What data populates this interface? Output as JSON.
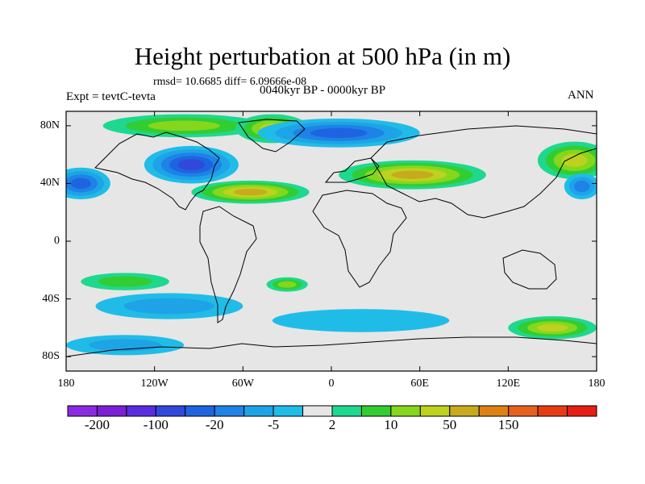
{
  "chart_data": {
    "type": "heatmap",
    "title": "Height perturbation at 500 hPa (in m)",
    "stats_text": "rmsd= 10.6685 diff= 6.09666e-08",
    "period_text": "0040kyr BP - 0000kyr BP",
    "left_text": "Expt = tevtC-tevta",
    "right_text": "ANN",
    "xlim": [
      -180,
      180
    ],
    "ylim": [
      -90,
      90
    ],
    "x_ticks": [
      {
        "value": -180,
        "label": "180"
      },
      {
        "value": -120,
        "label": "120W"
      },
      {
        "value": -60,
        "label": "60W"
      },
      {
        "value": 0,
        "label": "0"
      },
      {
        "value": 60,
        "label": "60E"
      },
      {
        "value": 120,
        "label": "120E"
      },
      {
        "value": 180,
        "label": "180"
      }
    ],
    "y_ticks": [
      {
        "value": 80,
        "label": "80N"
      },
      {
        "value": 40,
        "label": "40N"
      },
      {
        "value": 0,
        "label": "0"
      },
      {
        "value": -40,
        "label": "40S"
      },
      {
        "value": -80,
        "label": "80S"
      }
    ],
    "colorbar": {
      "colors": [
        "#8a2be2",
        "#7b1fd4",
        "#5a2ce0",
        "#3048dc",
        "#1e64e0",
        "#1e82e6",
        "#1ea4e6",
        "#20bce8",
        "#e6e6e6",
        "#1ed890",
        "#32cd32",
        "#86d61e",
        "#bcd21e",
        "#c8aa1e",
        "#dc8214",
        "#e6601e",
        "#e63c14",
        "#e61e14"
      ],
      "labels": [
        {
          "boundary": 1,
          "label": "-200"
        },
        {
          "boundary": 3,
          "label": "-100"
        },
        {
          "boundary": 5,
          "label": "-20"
        },
        {
          "boundary": 7,
          "label": "-5"
        },
        {
          "boundary": 9,
          "label": "2"
        },
        {
          "boundary": 11,
          "label": "10"
        },
        {
          "boundary": 13,
          "label": "50"
        },
        {
          "boundary": 15,
          "label": "150"
        }
      ]
    },
    "regions": [
      {
        "name": "arctic-canada-high",
        "lon": -100,
        "lat": 80,
        "rx": 55,
        "ry": 8,
        "level": 11
      },
      {
        "name": "greenland-high",
        "lon": -40,
        "lat": 78,
        "rx": 25,
        "ry": 10,
        "level": 12
      },
      {
        "name": "north-atlantic-high",
        "lon": -55,
        "lat": 34,
        "rx": 40,
        "ry": 8,
        "level": 13
      },
      {
        "name": "eurasia-high",
        "lon": 55,
        "lat": 46,
        "rx": 50,
        "ry": 10,
        "level": 13
      },
      {
        "name": "east-asia-high",
        "lon": 165,
        "lat": 56,
        "rx": 25,
        "ry": 13,
        "level": 12
      },
      {
        "name": "south-atlantic-high",
        "lon": -30,
        "lat": -30,
        "rx": 14,
        "ry": 5,
        "level": 11
      },
      {
        "name": "south-pacific-high",
        "lon": -140,
        "lat": -28,
        "rx": 30,
        "ry": 6,
        "level": 10
      },
      {
        "name": "australia-south-high",
        "lon": 150,
        "lat": -60,
        "rx": 30,
        "ry": 8,
        "level": 12
      },
      {
        "name": "north-america-low",
        "lon": -95,
        "lat": 53,
        "rx": 32,
        "ry": 13,
        "level": 3
      },
      {
        "name": "arctic-low",
        "lon": 5,
        "lat": 75,
        "rx": 55,
        "ry": 10,
        "level": 4
      },
      {
        "name": "north-pacific-low",
        "lon": -170,
        "lat": 40,
        "rx": 20,
        "ry": 11,
        "level": 4
      },
      {
        "name": "east-siberia-low",
        "lon": 170,
        "lat": 38,
        "rx": 12,
        "ry": 9,
        "level": 5
      },
      {
        "name": "south-pacific-low",
        "lon": -110,
        "lat": -45,
        "rx": 50,
        "ry": 9,
        "level": 6
      },
      {
        "name": "southern-ocean-low",
        "lon": 20,
        "lat": -55,
        "rx": 60,
        "ry": 8,
        "level": 7
      },
      {
        "name": "antarctic-pacific-low",
        "lon": -140,
        "lat": -72,
        "rx": 40,
        "ry": 7,
        "level": 6
      }
    ]
  }
}
